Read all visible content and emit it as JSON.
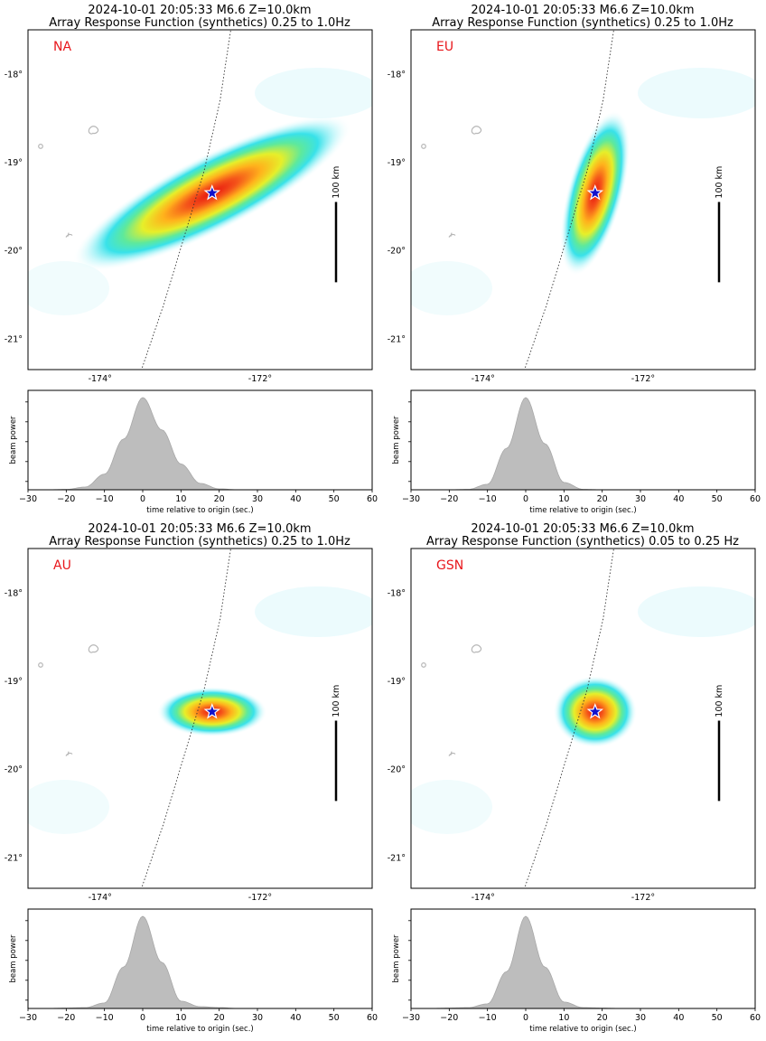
{
  "panels": [
    {
      "title_line1": "2024-10-01 20:05:33 M6.6 Z=10.0km",
      "title_line2": "Array Response Function (synthetics) 0.25 to 1.0Hz",
      "network": "NA",
      "scale_label": "100 km",
      "map": {
        "lat_ticks": [
          "-18°",
          "-19°",
          "-20°",
          "-21°"
        ],
        "lon_ticks": [
          "-174°",
          "-172°"
        ],
        "response_shape": {
          "semi_major": 1.55,
          "semi_minor": 0.38,
          "rotation_deg": -27,
          "peak_color": "#e8150f"
        }
      },
      "chart_data": {
        "type": "area",
        "x": [
          -30,
          -25,
          -20,
          -15,
          -10,
          -5,
          0,
          5,
          10,
          15,
          20,
          25,
          30,
          40,
          50,
          60
        ],
        "values": [
          0,
          0,
          0.005,
          0.03,
          0.17,
          0.55,
          1.0,
          0.65,
          0.28,
          0.07,
          0.01,
          0,
          0,
          0,
          0,
          0
        ],
        "xlabel": "time relative to origin (sec.)",
        "ylabel": "beam power",
        "xlim": [
          -30,
          60
        ],
        "xticks": [
          "−30",
          "−20",
          "−10",
          "0",
          "10",
          "20",
          "30",
          "40",
          "50",
          "60"
        ]
      }
    },
    {
      "title_line1": "2024-10-01 20:05:33 M6.6 Z=10.0km",
      "title_line2": "Array Response Function (synthetics) 0.25 to 1.0Hz",
      "network": "EU",
      "scale_label": "100 km",
      "map": {
        "lat_ticks": [
          "-18°",
          "-19°",
          "-20°",
          "-21°"
        ],
        "lon_ticks": [
          "-174°",
          "-172°"
        ],
        "response_shape": {
          "semi_major": 0.85,
          "semi_minor": 0.28,
          "rotation_deg": -75,
          "peak_color": "#e8150f"
        }
      },
      "chart_data": {
        "type": "area",
        "x": [
          -30,
          -25,
          -20,
          -15,
          -10,
          -5,
          0,
          5,
          10,
          15,
          20,
          25,
          30,
          40,
          50,
          60
        ],
        "values": [
          0,
          0,
          0,
          0.005,
          0.06,
          0.45,
          1.0,
          0.5,
          0.08,
          0.005,
          0,
          0,
          0,
          0,
          0,
          0
        ],
        "xlabel": "time relative to origin (sec.)",
        "ylabel": "beam power",
        "xlim": [
          -30,
          60
        ],
        "xticks": [
          "−30",
          "−20",
          "−10",
          "0",
          "10",
          "20",
          "30",
          "40",
          "50",
          "60"
        ]
      }
    },
    {
      "title_line1": "2024-10-01 20:05:33 M6.6 Z=10.0km",
      "title_line2": "Array Response Function (synthetics) 0.25 to 1.0Hz",
      "network": "AU",
      "scale_label": "100 km",
      "map": {
        "lat_ticks": [
          "-18°",
          "-19°",
          "-20°",
          "-21°"
        ],
        "lon_ticks": [
          "-174°",
          "-172°"
        ],
        "response_shape": {
          "semi_major": 0.55,
          "semi_minor": 0.25,
          "rotation_deg": 0,
          "peak_color": "#e8150f"
        }
      },
      "chart_data": {
        "type": "area",
        "x": [
          -30,
          -25,
          -20,
          -15,
          -10,
          -5,
          0,
          5,
          10,
          15,
          20,
          25,
          30,
          40,
          50,
          60
        ],
        "values": [
          0,
          0,
          0.005,
          0.01,
          0.06,
          0.45,
          1.0,
          0.5,
          0.08,
          0.02,
          0.01,
          0,
          0,
          0,
          0,
          0
        ],
        "xlabel": "time relative to origin (sec.)",
        "ylabel": "beam power",
        "xlim": [
          -30,
          60
        ],
        "xticks": [
          "−30",
          "−20",
          "−10",
          "0",
          "10",
          "20",
          "30",
          "40",
          "50",
          "60"
        ]
      }
    },
    {
      "title_line1": "2024-10-01 20:05:33 M6.6 Z=10.0km",
      "title_line2": "Array Response Function (synthetics) 0.05 to 0.25 Hz",
      "network": "GSN",
      "scale_label": "100 km",
      "map": {
        "lat_ticks": [
          "-18°",
          "-19°",
          "-20°",
          "-21°"
        ],
        "lon_ticks": [
          "-174°",
          "-172°"
        ],
        "response_shape": {
          "semi_major": 0.42,
          "semi_minor": 0.36,
          "rotation_deg": 0,
          "peak_color": "#e8150f"
        }
      },
      "chart_data": {
        "type": "area",
        "x": [
          -30,
          -25,
          -20,
          -15,
          -10,
          -5,
          0,
          5,
          10,
          15,
          20,
          25,
          30,
          40,
          50,
          60
        ],
        "values": [
          0,
          0,
          0.005,
          0.01,
          0.05,
          0.4,
          1.0,
          0.45,
          0.07,
          0.01,
          0.005,
          0,
          0,
          0,
          0,
          0
        ],
        "xlabel": "time relative to origin (sec.)",
        "ylabel": "beam power",
        "xlim": [
          -30,
          60
        ],
        "xticks": [
          "−30",
          "−20",
          "−10",
          "0",
          "10",
          "20",
          "30",
          "40",
          "50",
          "60"
        ]
      }
    }
  ],
  "colors": {
    "frame": "#000000",
    "beam_fill": "#bdbdbd",
    "network_label": "#e8161b",
    "star_fill": "#1010cc",
    "star_stroke": "#ffffff"
  }
}
